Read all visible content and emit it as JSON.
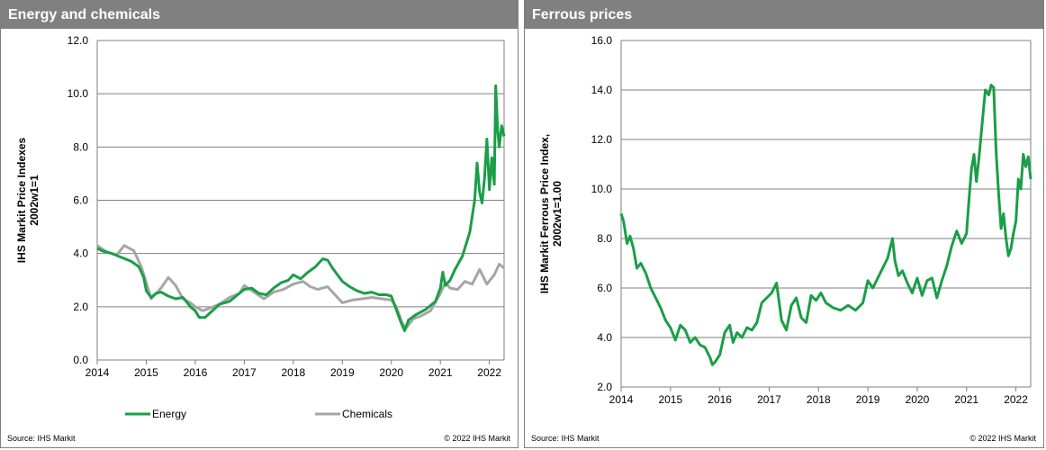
{
  "colors": {
    "energy": "#1a9e47",
    "chemicals": "#a6a6a6",
    "grid": "#7f7f7f",
    "header": "#808080"
  },
  "left_panel": {
    "title": "Energy and chemicals",
    "source": "Source:  IHS Markit",
    "copyright": "© 2022  IHS Markit"
  },
  "right_panel": {
    "title": "Ferrous prices",
    "source": "Source:  IHS Markit",
    "copyright": "© 2022  IHS Markit"
  },
  "chart_data": [
    {
      "type": "line",
      "title": "Energy and chemicals",
      "xlabel": "",
      "ylabel": "IHS Markit Price Indexes 2002w1=1",
      "ylabel_lines": [
        "IHS Markit Price Indexes",
        "2002w1=1"
      ],
      "xlim": [
        2014,
        2022.3
      ],
      "ylim": [
        0,
        12
      ],
      "xticks": [
        2014,
        2015,
        2016,
        2017,
        2018,
        2019,
        2020,
        2021,
        2022
      ],
      "yticks": [
        0,
        2,
        4,
        6,
        8,
        10,
        12
      ],
      "ytick_labels": [
        "0.0",
        "2.0",
        "4.0",
        "6.0",
        "8.0",
        "10.0",
        "12.0"
      ],
      "legend_position": "bottom",
      "series": [
        {
          "name": "Energy",
          "x": [
            2014,
            2014.1,
            2014.3,
            2014.5,
            2014.7,
            2014.85,
            2014.95,
            2015.0,
            2015.1,
            2015.2,
            2015.3,
            2015.45,
            2015.6,
            2015.75,
            2015.9,
            2016.0,
            2016.08,
            2016.2,
            2016.35,
            2016.5,
            2016.7,
            2016.9,
            2017.0,
            2017.15,
            2017.3,
            2017.45,
            2017.6,
            2017.75,
            2017.9,
            2018.0,
            2018.15,
            2018.3,
            2018.45,
            2018.6,
            2018.7,
            2018.8,
            2018.9,
            2019.0,
            2019.15,
            2019.3,
            2019.45,
            2019.6,
            2019.75,
            2019.9,
            2020.0,
            2020.1,
            2020.2,
            2020.27,
            2020.35,
            2020.5,
            2020.7,
            2020.9,
            2021.0,
            2021.05,
            2021.1,
            2021.2,
            2021.3,
            2021.45,
            2021.6,
            2021.7,
            2021.75,
            2021.8,
            2021.85,
            2021.9,
            2021.95,
            2022.0,
            2022.05,
            2022.1,
            2022.13,
            2022.17,
            2022.2,
            2022.25,
            2022.3
          ],
          "values": [
            4.2,
            4.1,
            4.0,
            3.85,
            3.7,
            3.5,
            3.1,
            2.6,
            2.35,
            2.5,
            2.55,
            2.4,
            2.3,
            2.35,
            2.0,
            1.85,
            1.6,
            1.6,
            1.85,
            2.1,
            2.2,
            2.5,
            2.65,
            2.7,
            2.5,
            2.45,
            2.7,
            2.9,
            3.0,
            3.2,
            3.05,
            3.3,
            3.5,
            3.8,
            3.75,
            3.45,
            3.2,
            2.95,
            2.75,
            2.6,
            2.5,
            2.55,
            2.45,
            2.45,
            2.4,
            1.9,
            1.4,
            1.1,
            1.5,
            1.7,
            1.9,
            2.2,
            2.7,
            3.3,
            2.8,
            3.0,
            3.4,
            3.9,
            4.8,
            6.0,
            7.4,
            6.3,
            5.9,
            6.8,
            8.3,
            6.4,
            7.6,
            6.6,
            10.3,
            8.6,
            8.0,
            8.8,
            8.4
          ]
        },
        {
          "name": "Chemicals",
          "x": [
            2014,
            2014.2,
            2014.4,
            2014.55,
            2014.75,
            2014.9,
            2015.0,
            2015.1,
            2015.3,
            2015.45,
            2015.6,
            2015.75,
            2015.9,
            2016.0,
            2016.15,
            2016.3,
            2016.5,
            2016.7,
            2016.9,
            2017.0,
            2017.2,
            2017.4,
            2017.6,
            2017.8,
            2018.0,
            2018.2,
            2018.35,
            2018.5,
            2018.7,
            2018.85,
            2019.0,
            2019.2,
            2019.4,
            2019.6,
            2019.8,
            2020.0,
            2020.1,
            2020.22,
            2020.3,
            2020.45,
            2020.6,
            2020.8,
            2021.0,
            2021.1,
            2021.2,
            2021.35,
            2021.5,
            2021.65,
            2021.8,
            2021.95,
            2022.1,
            2022.2,
            2022.3
          ],
          "values": [
            4.3,
            4.05,
            3.95,
            4.3,
            4.1,
            3.5,
            2.9,
            2.3,
            2.7,
            3.1,
            2.8,
            2.3,
            2.15,
            2.0,
            1.85,
            1.95,
            2.1,
            2.35,
            2.5,
            2.8,
            2.55,
            2.3,
            2.55,
            2.65,
            2.85,
            2.95,
            2.75,
            2.65,
            2.75,
            2.45,
            2.15,
            2.25,
            2.3,
            2.35,
            2.3,
            2.25,
            2.0,
            1.4,
            1.2,
            1.55,
            1.65,
            1.85,
            2.5,
            2.9,
            2.7,
            2.65,
            2.95,
            2.85,
            3.4,
            2.85,
            3.2,
            3.6,
            3.45
          ]
        }
      ]
    },
    {
      "type": "line",
      "title": "Ferrous prices",
      "xlabel": "",
      "ylabel": "IHS Markit Ferrous Price Index, 2002w1=1.00",
      "ylabel_lines": [
        "IHS Markit Ferrous Price Index,",
        "2002w1=1.00"
      ],
      "xlim": [
        2014,
        2022.3
      ],
      "ylim": [
        2,
        16
      ],
      "xticks": [
        2014,
        2015,
        2016,
        2017,
        2018,
        2019,
        2020,
        2021,
        2022
      ],
      "yticks": [
        2,
        4,
        6,
        8,
        10,
        12,
        14,
        16
      ],
      "ytick_labels": [
        "2.0",
        "4.0",
        "6.0",
        "8.0",
        "10.0",
        "12.0",
        "14.0",
        "16.0"
      ],
      "series": [
        {
          "name": "Ferrous",
          "x": [
            2014,
            2014.05,
            2014.12,
            2014.18,
            2014.25,
            2014.32,
            2014.4,
            2014.5,
            2014.6,
            2014.7,
            2014.8,
            2014.9,
            2015.0,
            2015.1,
            2015.2,
            2015.3,
            2015.4,
            2015.5,
            2015.6,
            2015.7,
            2015.8,
            2015.85,
            2015.9,
            2016.0,
            2016.1,
            2016.2,
            2016.27,
            2016.35,
            2016.45,
            2016.55,
            2016.65,
            2016.75,
            2016.85,
            2016.95,
            2017.05,
            2017.15,
            2017.25,
            2017.35,
            2017.45,
            2017.55,
            2017.65,
            2017.75,
            2017.85,
            2017.95,
            2018.05,
            2018.15,
            2018.3,
            2018.45,
            2018.6,
            2018.75,
            2018.9,
            2019.0,
            2019.1,
            2019.2,
            2019.3,
            2019.4,
            2019.5,
            2019.55,
            2019.62,
            2019.7,
            2019.8,
            2019.9,
            2020.0,
            2020.1,
            2020.2,
            2020.3,
            2020.4,
            2020.5,
            2020.6,
            2020.7,
            2020.8,
            2020.9,
            2021.0,
            2021.05,
            2021.1,
            2021.15,
            2021.2,
            2021.25,
            2021.3,
            2021.38,
            2021.45,
            2021.5,
            2021.55,
            2021.6,
            2021.65,
            2021.7,
            2021.75,
            2021.8,
            2021.85,
            2021.9,
            2021.95,
            2022.0,
            2022.05,
            2022.1,
            2022.15,
            2022.2,
            2022.25,
            2022.3
          ],
          "values": [
            9.0,
            8.7,
            7.8,
            8.1,
            7.6,
            6.8,
            7.0,
            6.6,
            6.0,
            5.6,
            5.2,
            4.7,
            4.4,
            3.9,
            4.5,
            4.3,
            3.8,
            4.0,
            3.7,
            3.6,
            3.2,
            2.9,
            3.0,
            3.3,
            4.2,
            4.5,
            3.8,
            4.2,
            4.0,
            4.4,
            4.3,
            4.6,
            5.4,
            5.6,
            5.8,
            6.2,
            4.7,
            4.3,
            5.3,
            5.6,
            4.8,
            4.6,
            5.7,
            5.5,
            5.8,
            5.4,
            5.2,
            5.1,
            5.3,
            5.1,
            5.4,
            6.3,
            6.0,
            6.4,
            6.8,
            7.2,
            8.0,
            7.1,
            6.5,
            6.7,
            6.2,
            5.8,
            6.4,
            5.7,
            6.3,
            6.4,
            5.6,
            6.3,
            6.9,
            7.7,
            8.3,
            7.8,
            8.2,
            9.6,
            10.8,
            11.4,
            10.3,
            11.2,
            12.3,
            14.0,
            13.8,
            14.2,
            14.1,
            11.5,
            9.8,
            8.4,
            9.0,
            8.0,
            7.3,
            7.6,
            8.2,
            8.7,
            10.4,
            10.0,
            11.4,
            10.9,
            11.3,
            10.4
          ]
        }
      ]
    }
  ]
}
